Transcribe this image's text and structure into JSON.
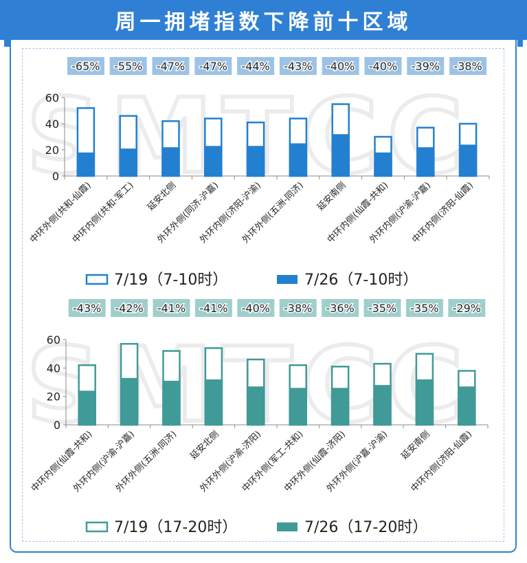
{
  "title": "周一拥堵指数下降前十区域",
  "colors": {
    "header": "#2f80d4",
    "chart1_fill": "#2380d0",
    "chart1_badge": "#9cc3e6",
    "chart2_fill": "#3f9a98",
    "chart2_badge": "#9fcfcd"
  },
  "chart_data": [
    {
      "type": "bar",
      "categories": [
        "中环外侧(共和-仙霞)",
        "中环内侧(共和-军工)",
        "延安北侧",
        "外环外侧(同济-沪嘉)",
        "外环内侧(济阳-沪渝)",
        "外环外侧(五洲-同济)",
        "延安南侧",
        "中环内侧(仙霞-共和)",
        "外环内侧(沪渝-沪嘉)",
        "中环内侧(济阳-仙霞)"
      ],
      "series": [
        {
          "name": "7/19（7-10时）",
          "style": "outline",
          "values": [
            52,
            46,
            42,
            44,
            41,
            44,
            55,
            30,
            37,
            40
          ]
        },
        {
          "name": "7/26（7-10时）",
          "style": "filled",
          "values": [
            18,
            21,
            22,
            23,
            23,
            25,
            32,
            18,
            22,
            24
          ]
        }
      ],
      "change_labels": [
        "-65%",
        "-55%",
        "-47%",
        "-47%",
        "-44%",
        "-43%",
        "-40%",
        "-40%",
        "-39%",
        "-38%"
      ],
      "yticks": [
        "0",
        "20",
        "40",
        "60"
      ],
      "ylim": [
        0,
        60
      ]
    },
    {
      "type": "bar",
      "categories": [
        "中环内侧(仙霞-共和)",
        "外环内侧(沪渝-沪嘉)",
        "外环外侧(五洲-同济)",
        "延安北侧",
        "外环外侧(沪渝-济阳)",
        "中环外侧(军工-共和)",
        "中环外侧(仙霞-济阳)",
        "外环外侧(沪嘉-沪渝)",
        "延安南侧",
        "中环内侧(济阳-仙霞)"
      ],
      "series": [
        {
          "name": "7/19（17-20时）",
          "style": "outline",
          "values": [
            42,
            57,
            52,
            54,
            46,
            42,
            41,
            43,
            50,
            38
          ]
        },
        {
          "name": "7/26（17-20时）",
          "style": "filled",
          "values": [
            24,
            33,
            31,
            32,
            27,
            26,
            26,
            28,
            32,
            27
          ]
        }
      ],
      "change_labels": [
        "-43%",
        "-42%",
        "-41%",
        "-41%",
        "-40%",
        "-38%",
        "-36%",
        "-35%",
        "-35%",
        "-29%"
      ],
      "yticks": [
        "0",
        "20",
        "40",
        "60"
      ],
      "ylim": [
        0,
        60
      ]
    }
  ]
}
